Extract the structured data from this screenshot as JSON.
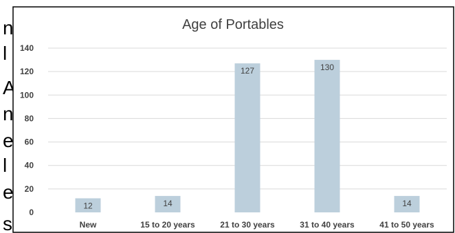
{
  "chart_data": {
    "type": "bar",
    "title": "Age of Portables",
    "categories": [
      "New",
      "15 to 20 years",
      "21 to 30 years",
      "31 to 40 years",
      "41 to 50 years"
    ],
    "values": [
      12,
      14,
      127,
      130,
      14
    ],
    "ylim": [
      0,
      140
    ],
    "yticks": [
      0,
      20,
      40,
      60,
      80,
      100,
      120,
      140
    ],
    "grid": true,
    "legend": "none",
    "bar_color": "#bccfdc",
    "xlabel": "",
    "ylabel": ""
  },
  "left_cutoff_letters": [
    "n",
    "l",
    "A",
    "n",
    "e",
    "l",
    "e",
    "s"
  ],
  "colors": {
    "border": "#000000",
    "grid": "#d9d9d9",
    "text": "#404040"
  }
}
